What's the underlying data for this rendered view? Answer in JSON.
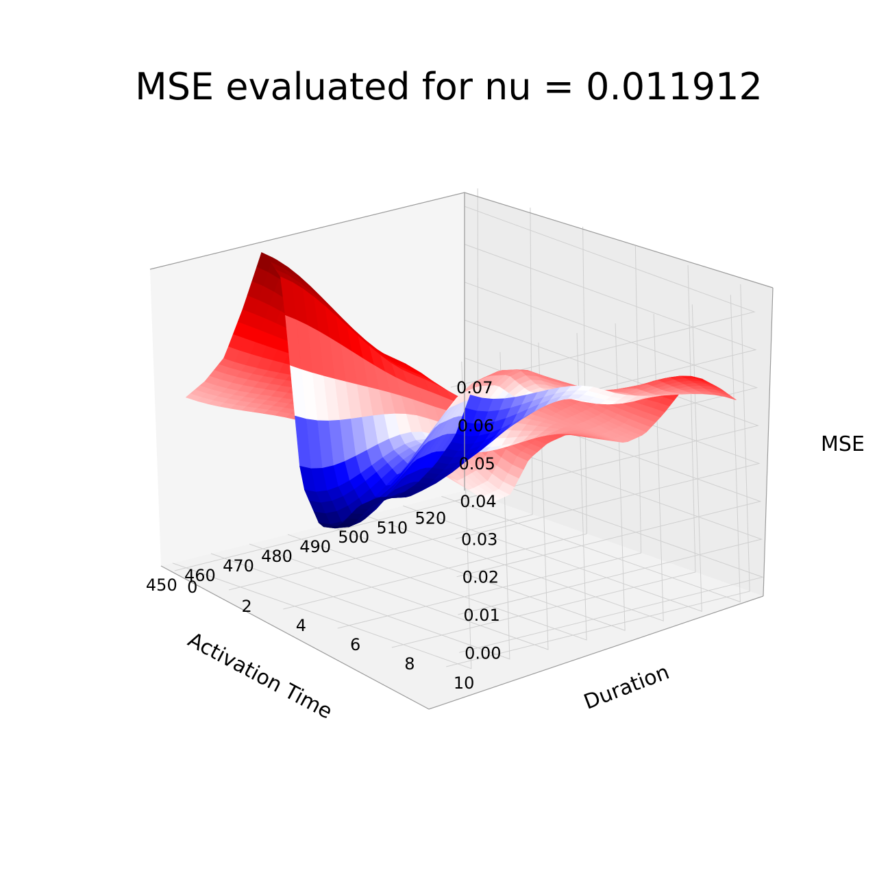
{
  "chart_data": {
    "type": "surface",
    "title": "MSE evaluated for nu =  0.011912",
    "xlabel": "Activation Time",
    "ylabel": "Duration",
    "zlabel": "MSE",
    "xlim": [
      447,
      526
    ],
    "ylim": [
      -0.5,
      10.5
    ],
    "zlim": [
      -0.005,
      0.076
    ],
    "x_ticks": [
      450,
      460,
      470,
      480,
      490,
      500,
      510,
      520
    ],
    "y_ticks": [
      0,
      2,
      4,
      6,
      8,
      10
    ],
    "z_ticks": [
      "0.00",
      "0.01",
      "0.02",
      "0.03",
      "0.04",
      "0.05",
      "0.06",
      "0.07"
    ],
    "colormap": "seismic",
    "grid": true,
    "surface_profiles": [
      {
        "duration": 0,
        "x": [
          450,
          455,
          460,
          465,
          470,
          475,
          480,
          485,
          490,
          495,
          500,
          505,
          510,
          515,
          520,
          524
        ],
        "mse": [
          0.04,
          0.043,
          0.048,
          0.06,
          0.074,
          0.065,
          0.01,
          -0.003,
          -0.004,
          0.0,
          0.001,
          0.0,
          0.002,
          0.006,
          0.012,
          0.022
        ]
      },
      {
        "duration": 5,
        "x": [
          450,
          455,
          460,
          465,
          470,
          475,
          480,
          485,
          490,
          495,
          500,
          505,
          510,
          515,
          520,
          524
        ],
        "mse": [
          0.045,
          0.048,
          0.052,
          0.057,
          0.058,
          0.052,
          0.034,
          0.03,
          0.04,
          0.046,
          0.047,
          0.046,
          0.04,
          0.036,
          0.034,
          0.036
        ]
      },
      {
        "duration": 10,
        "x": [
          450,
          455,
          460,
          465,
          470,
          475,
          480,
          485,
          490,
          495,
          500,
          505,
          510,
          515,
          520,
          524
        ],
        "mse": [
          0.046,
          0.04,
          0.035,
          0.036,
          0.044,
          0.047,
          0.048,
          0.046,
          0.044,
          0.042,
          0.043,
          0.047,
          0.052,
          0.054,
          0.05,
          0.046
        ]
      }
    ]
  }
}
